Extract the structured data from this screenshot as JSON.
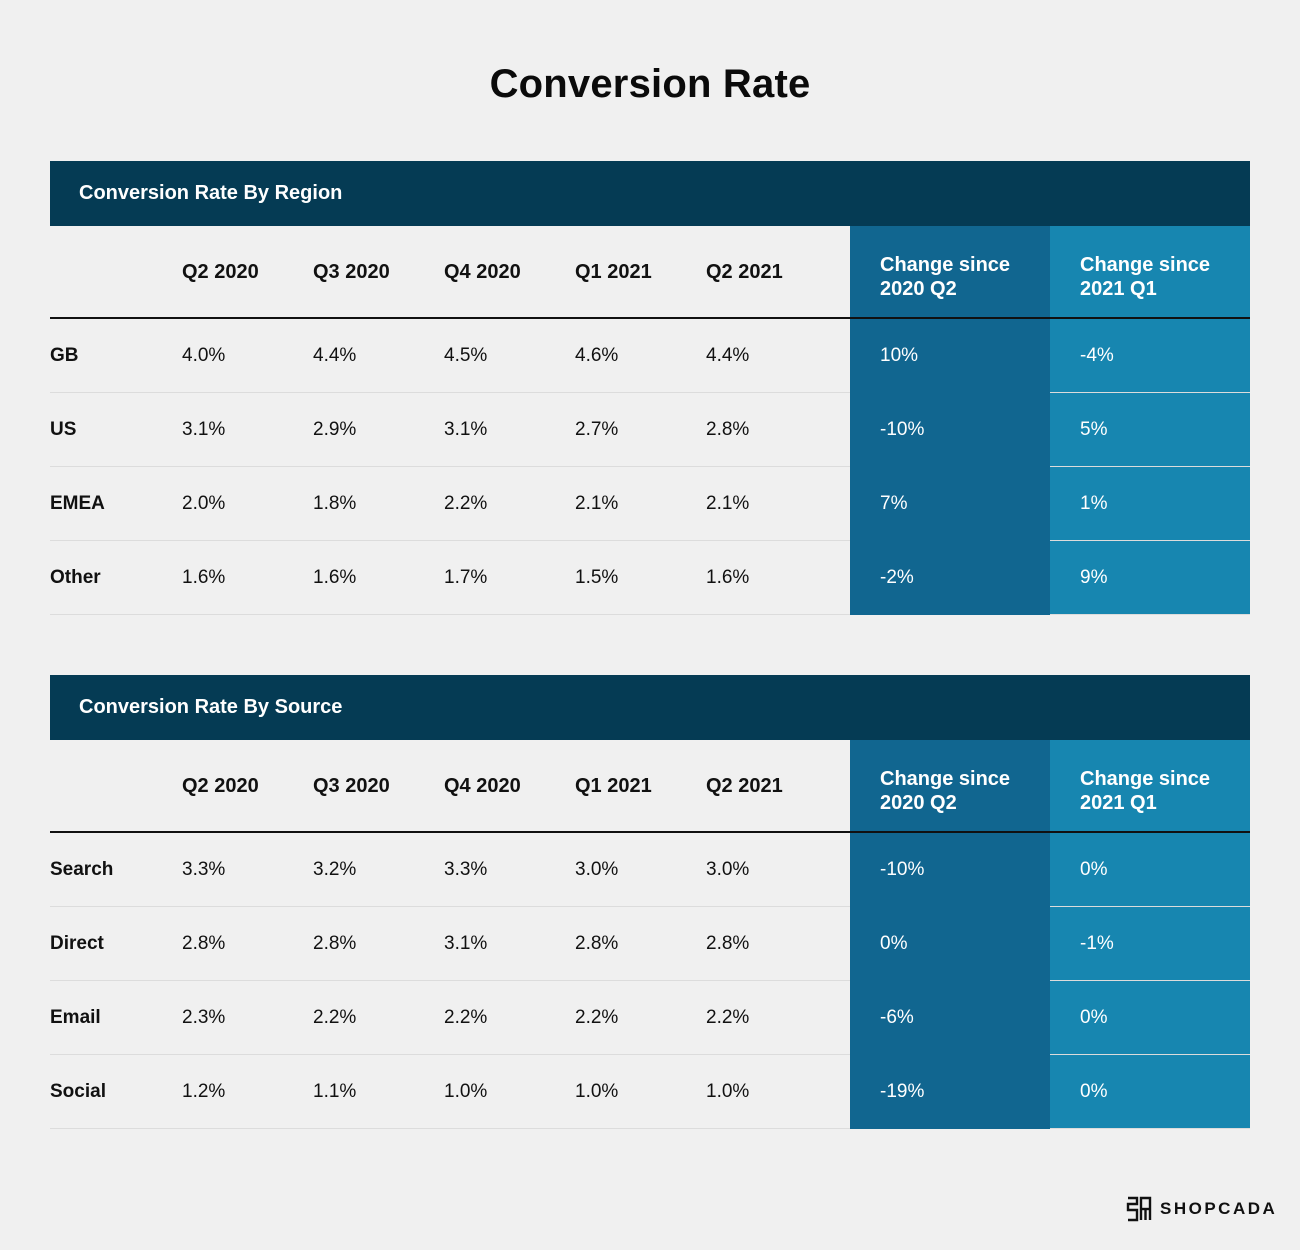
{
  "title": "Conversion Rate",
  "columns": [
    "Q2 2020",
    "Q3 2020",
    "Q4 2020",
    "Q1 2021",
    "Q2 2021"
  ],
  "change_headers": [
    "Change since\n2020 Q2",
    "Change since\n2021 Q1"
  ],
  "colors": {
    "section_bar": "#053b54",
    "change_col_1": "#116690",
    "change_col_2": "#1786b0",
    "background": "#f0f0f0"
  },
  "tables": [
    {
      "title": "Conversion Rate By Region",
      "rows": [
        {
          "label": "GB",
          "values": [
            "4.0%",
            "4.4%",
            "4.5%",
            "4.6%",
            "4.4%"
          ],
          "change1": "10%",
          "change2": "-4%"
        },
        {
          "label": "US",
          "values": [
            "3.1%",
            "2.9%",
            "3.1%",
            "2.7%",
            "2.8%"
          ],
          "change1": "-10%",
          "change2": "5%"
        },
        {
          "label": "EMEA",
          "values": [
            "2.0%",
            "1.8%",
            "2.2%",
            "2.1%",
            "2.1%"
          ],
          "change1": "7%",
          "change2": "1%"
        },
        {
          "label": "Other",
          "values": [
            "1.6%",
            "1.6%",
            "1.7%",
            "1.5%",
            "1.6%"
          ],
          "change1": "-2%",
          "change2": "9%"
        }
      ]
    },
    {
      "title": "Conversion Rate By Source",
      "rows": [
        {
          "label": "Search",
          "values": [
            "3.3%",
            "3.2%",
            "3.3%",
            "3.0%",
            "3.0%"
          ],
          "change1": "-10%",
          "change2": "0%"
        },
        {
          "label": "Direct",
          "values": [
            "2.8%",
            "2.8%",
            "3.1%",
            "2.8%",
            "2.8%"
          ],
          "change1": "0%",
          "change2": "-1%"
        },
        {
          "label": "Email",
          "values": [
            "2.3%",
            "2.2%",
            "2.2%",
            "2.2%",
            "2.2%"
          ],
          "change1": "-6%",
          "change2": "0%"
        },
        {
          "label": "Social",
          "values": [
            "1.2%",
            "1.1%",
            "1.0%",
            "1.0%",
            "1.0%"
          ],
          "change1": "-19%",
          "change2": "0%"
        }
      ]
    }
  ],
  "logo": {
    "text": "SHOPCADA",
    "icon": "shopcada-logo-icon"
  }
}
